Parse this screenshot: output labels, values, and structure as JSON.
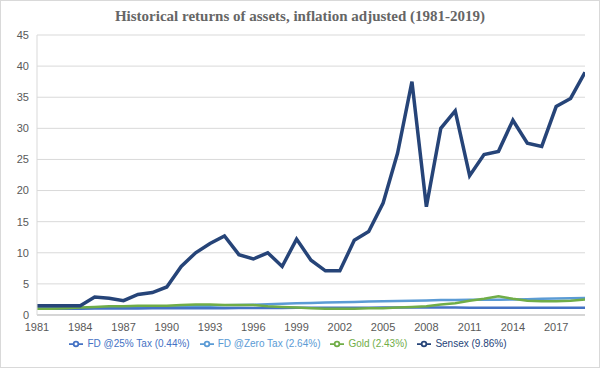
{
  "chart_data": {
    "type": "line",
    "title": "Historical returns of assets, inflation adjusted (1981-2019)",
    "x": [
      1981,
      1982,
      1983,
      1984,
      1985,
      1986,
      1987,
      1988,
      1989,
      1990,
      1991,
      1992,
      1993,
      1994,
      1995,
      1996,
      1997,
      1998,
      1999,
      2000,
      2001,
      2002,
      2003,
      2004,
      2005,
      2006,
      2007,
      2008,
      2009,
      2010,
      2011,
      2012,
      2013,
      2014,
      2015,
      2016,
      2017,
      2018,
      2019
    ],
    "series": [
      {
        "name": "FD @Zero Tax (2.64%)",
        "color": "#5b9bd5",
        "values": [
          1.0,
          1.04,
          1.08,
          1.12,
          1.16,
          1.2,
          1.24,
          1.28,
          1.32,
          1.36,
          1.4,
          1.45,
          1.5,
          1.55,
          1.6,
          1.65,
          1.72,
          1.8,
          1.87,
          1.94,
          2.0,
          2.05,
          2.1,
          2.15,
          2.2,
          2.25,
          2.3,
          2.35,
          2.4,
          2.4,
          2.45,
          2.45,
          2.45,
          2.5,
          2.55,
          2.6,
          2.65,
          2.7,
          2.75
        ]
      },
      {
        "name": "FD @25% Tax (0.44%)",
        "color": "#4472c4",
        "values": [
          1.0,
          1.0,
          1.01,
          1.02,
          1.03,
          1.04,
          1.05,
          1.06,
          1.07,
          1.08,
          1.08,
          1.09,
          1.1,
          1.1,
          1.11,
          1.12,
          1.13,
          1.14,
          1.15,
          1.16,
          1.17,
          1.17,
          1.18,
          1.18,
          1.19,
          1.19,
          1.2,
          1.2,
          1.2,
          1.19,
          1.18,
          1.17,
          1.16,
          1.16,
          1.16,
          1.16,
          1.17,
          1.17,
          1.17
        ]
      },
      {
        "name": "Gold (2.43%)",
        "color": "#70ad47",
        "values": [
          1.0,
          1.0,
          1.1,
          1.2,
          1.3,
          1.4,
          1.4,
          1.5,
          1.5,
          1.5,
          1.6,
          1.7,
          1.7,
          1.6,
          1.6,
          1.6,
          1.4,
          1.3,
          1.2,
          1.1,
          1.0,
          1.0,
          1.0,
          1.1,
          1.1,
          1.2,
          1.3,
          1.4,
          1.7,
          1.9,
          2.3,
          2.6,
          3.0,
          2.6,
          2.3,
          2.2,
          2.2,
          2.3,
          2.5
        ]
      },
      {
        "name": "Sensex (9.86%)",
        "color": "#264478",
        "values": [
          1.5,
          1.5,
          1.5,
          1.5,
          2.9,
          2.7,
          2.3,
          3.3,
          3.6,
          4.5,
          7.8,
          10.0,
          11.5,
          12.7,
          9.7,
          9.0,
          10.0,
          7.8,
          12.2,
          8.8,
          7.1,
          7.1,
          12.0,
          13.4,
          18.0,
          26.0,
          37.5,
          17.4,
          30.0,
          32.8,
          22.4,
          25.8,
          26.3,
          31.3,
          27.6,
          27.1,
          33.5,
          34.8,
          39.0
        ]
      }
    ],
    "xlim": [
      1981,
      2019
    ],
    "xticks": [
      1981,
      1984,
      1987,
      1990,
      1993,
      1996,
      1999,
      2002,
      2005,
      2008,
      2011,
      2014,
      2017
    ],
    "ylim": [
      0,
      45
    ],
    "yticks": [
      0,
      5,
      10,
      15,
      20,
      25,
      30,
      35,
      40,
      45
    ],
    "grid": true,
    "legend": "bottom"
  }
}
